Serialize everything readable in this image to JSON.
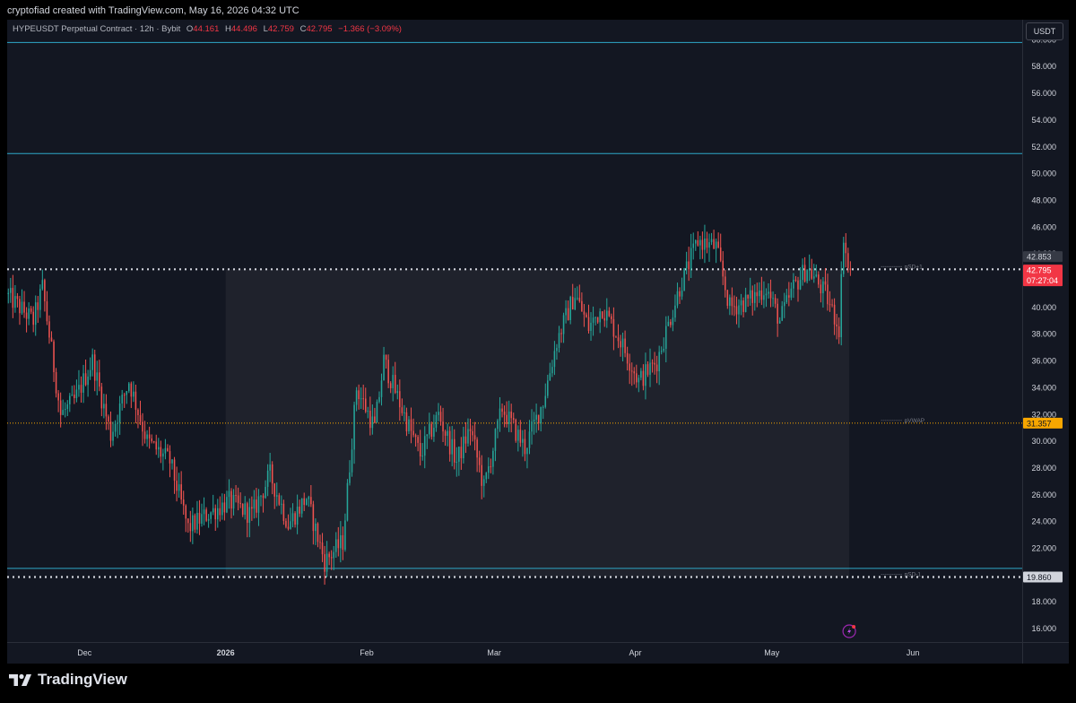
{
  "header": {
    "credit": "cryptofiad created with TradingView.com, May 16, 2026 04:32 UTC"
  },
  "legend": {
    "symbol": "HYPEUSDT Perpetual Contract · 12h · Bybit",
    "open_label": "O",
    "open_value": "44.161",
    "high_label": "H",
    "high_value": "44.496",
    "low_label": "L",
    "low_value": "42.759",
    "close_label": "C",
    "close_value": "42.795",
    "change": "−1.366 (−3.09%)"
  },
  "toolbar": {
    "currency": "USDT"
  },
  "brand": {
    "name": "TradingView"
  },
  "colors": {
    "background": "#131722",
    "up": "#26a69a",
    "down": "#ef5350",
    "level_line": "#2ea9c9",
    "vwap_line": "#f7a600",
    "price_tag": "#f23645",
    "vwap_tag": "#f7a600"
  },
  "chart_data": {
    "type": "candlestick",
    "symbol": "HYPEUSDT Perpetual Contract",
    "timeframe": "12h",
    "exchange": "Bybit",
    "ylim": [
      15,
      61.5
    ],
    "y_ticks": [
      "16.000",
      "18.000",
      "20.000",
      "22.000",
      "24.000",
      "26.000",
      "28.000",
      "30.000",
      "32.000",
      "34.000",
      "36.000",
      "38.000",
      "40.000",
      "42.000",
      "44.000",
      "46.000",
      "48.000",
      "50.000",
      "52.000",
      "54.000",
      "56.000",
      "58.000",
      "60.000"
    ],
    "x_start": "2025-11-14",
    "x_end": "2026-06-25",
    "x_ticks": [
      {
        "date": "2025-12-01",
        "label": "Dec"
      },
      {
        "date": "2026-01-01",
        "label": "2026"
      },
      {
        "date": "2026-02-01",
        "label": "Feb"
      },
      {
        "date": "2026-03-01",
        "label": "Mar"
      },
      {
        "date": "2026-04-01",
        "label": "Apr"
      },
      {
        "date": "2026-05-01",
        "label": "May"
      },
      {
        "date": "2026-06-01",
        "label": "Jun"
      }
    ],
    "price_path": [
      [
        "2025-11-14",
        41.0
      ],
      [
        "2025-11-20",
        39.0
      ],
      [
        "2025-11-22",
        41.5
      ],
      [
        "2025-11-26",
        32.0
      ],
      [
        "2025-11-29",
        33.0
      ],
      [
        "2025-12-03",
        36.0
      ],
      [
        "2025-12-07",
        30.5
      ],
      [
        "2025-12-11",
        34.5
      ],
      [
        "2025-12-15",
        30.0
      ],
      [
        "2025-12-20",
        28.5
      ],
      [
        "2025-12-24",
        23.5
      ],
      [
        "2025-12-28",
        24.5
      ],
      [
        "2026-01-02",
        25.5
      ],
      [
        "2026-01-07",
        24.5
      ],
      [
        "2026-01-11",
        27.5
      ],
      [
        "2026-01-15",
        23.8
      ],
      [
        "2026-01-19",
        25.8
      ],
      [
        "2026-01-23",
        21.0
      ],
      [
        "2026-01-27",
        22.5
      ],
      [
        "2026-01-30",
        34.0
      ],
      [
        "2026-02-03",
        31.0
      ],
      [
        "2026-02-05",
        36.0
      ],
      [
        "2026-02-10",
        31.5
      ],
      [
        "2026-02-13",
        29.0
      ],
      [
        "2026-02-17",
        32.0
      ],
      [
        "2026-02-21",
        28.5
      ],
      [
        "2026-02-24",
        31.0
      ],
      [
        "2026-02-27",
        26.5
      ],
      [
        "2026-03-03",
        32.5
      ],
      [
        "2026-03-08",
        29.5
      ],
      [
        "2026-03-12",
        33.0
      ],
      [
        "2026-03-15",
        37.5
      ],
      [
        "2026-03-19",
        41.0
      ],
      [
        "2026-03-22",
        38.5
      ],
      [
        "2026-03-25",
        40.0
      ],
      [
        "2026-03-29",
        37.5
      ],
      [
        "2026-04-02",
        34.5
      ],
      [
        "2026-04-06",
        36.0
      ],
      [
        "2026-04-11",
        41.5
      ],
      [
        "2026-04-15",
        45.0
      ],
      [
        "2026-04-19",
        44.5
      ],
      [
        "2026-04-22",
        40.0
      ],
      [
        "2026-04-26",
        40.5
      ],
      [
        "2026-04-30",
        41.5
      ],
      [
        "2026-05-03",
        39.0
      ],
      [
        "2026-05-06",
        41.5
      ],
      [
        "2026-05-09",
        43.0
      ],
      [
        "2026-05-13",
        41.0
      ],
      [
        "2026-05-16",
        38.5
      ],
      [
        "2026-05-17",
        45.5
      ],
      [
        "2026-05-18",
        42.8
      ]
    ],
    "levels": [
      {
        "name": "level-60",
        "value": 59.8,
        "style": "solid"
      },
      {
        "name": "level-51",
        "value": 51.5,
        "style": "solid"
      },
      {
        "name": "level-20",
        "value": 20.5,
        "style": "solid"
      },
      {
        "name": "pSD+1",
        "value": 42.853,
        "style": "dotted"
      },
      {
        "name": "pSD-1",
        "value": 19.86,
        "style": "dotted"
      },
      {
        "name": "pVWAP",
        "value": 31.357,
        "style": "dotted"
      }
    ],
    "annotations": [
      "pSD+1",
      "pVWAP",
      "pSD-1"
    ],
    "shaded_range": {
      "start": "2026-01-01",
      "end": "2026-05-18",
      "low": 19.86,
      "high": 42.853
    },
    "price_tags": {
      "sd_plus": "42.853",
      "last": "42.795",
      "countdown": "07:27:04",
      "vwap": "31.357",
      "sd_minus": "19.860"
    }
  }
}
